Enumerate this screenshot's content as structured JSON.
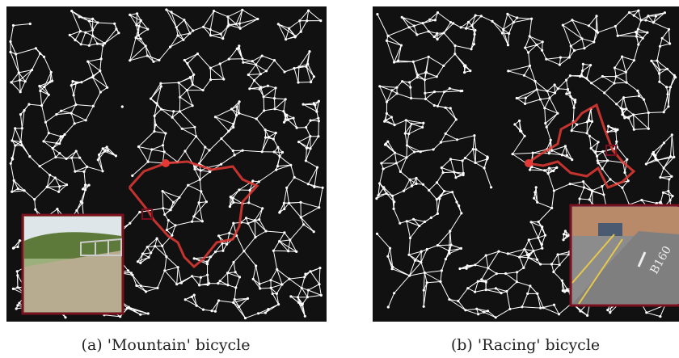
{
  "panels": [
    {
      "caption": "(a) 'Mountain' bicycle"
    },
    {
      "caption": "(b) 'Racing' bicycle",
      "inset_text": "B160"
    }
  ]
}
